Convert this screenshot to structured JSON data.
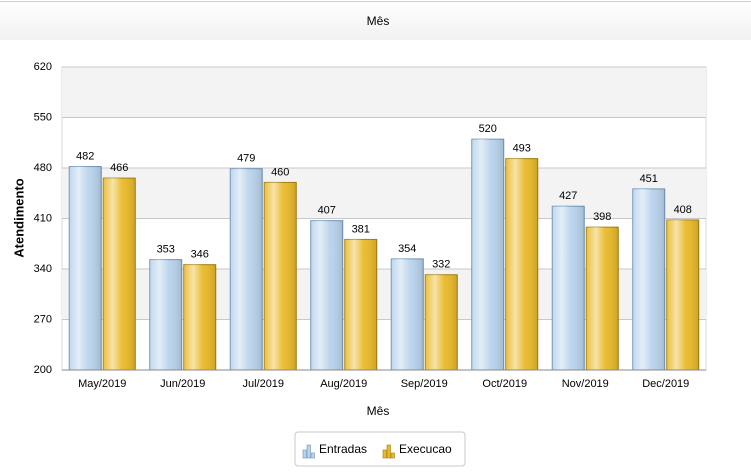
{
  "chart_data": {
    "type": "bar",
    "title": "Mês",
    "x_label": "Mês",
    "y_label": "Atendimento",
    "categories": [
      "May/2019",
      "Jun/2019",
      "Jul/2019",
      "Aug/2019",
      "Sep/2019",
      "Oct/2019",
      "Nov/2019",
      "Dec/2019"
    ],
    "series": [
      {
        "name": "Entradas",
        "color": "#b9d3ec",
        "values": [
          482,
          353,
          479,
          407,
          354,
          520,
          427,
          451
        ]
      },
      {
        "name": "Execucao",
        "color": "#e9b928",
        "values": [
          466,
          346,
          460,
          381,
          332,
          493,
          398,
          408
        ]
      }
    ],
    "ylim": [
      200,
      620
    ],
    "yticks": [
      200,
      270,
      340,
      410,
      480,
      550,
      620
    ],
    "grid": true,
    "legend": "bottom"
  }
}
